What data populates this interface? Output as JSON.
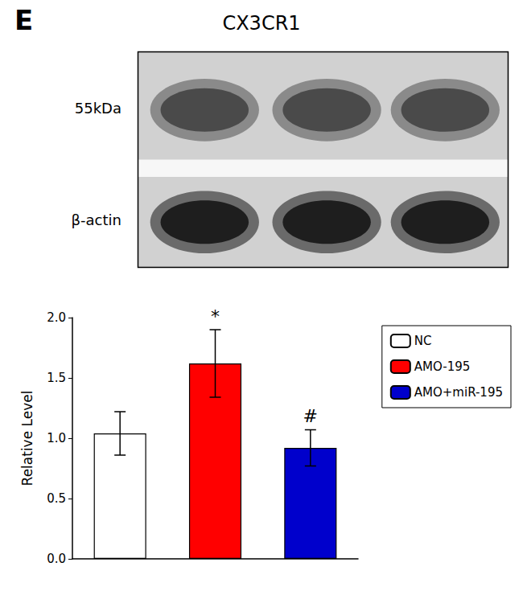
{
  "chart_data": {
    "type": "bar",
    "title": "CX3CR1",
    "categories": [
      "NC",
      "AMO-195",
      "AMO+miR-195"
    ],
    "values": [
      1.04,
      1.62,
      0.92
    ],
    "errors": [
      0.18,
      0.28,
      0.15
    ],
    "colors": [
      "#ffffff",
      "#ff0000",
      "#0000cc"
    ],
    "ylabel": "Relative Level",
    "ylim": [
      0.0,
      2.0
    ],
    "yticks": [
      {
        "value": 0,
        "label": "0.0"
      },
      0.5,
      {
        "value": 1,
        "label": "1.0"
      },
      1.5,
      {
        "value": 2,
        "label": "2.0"
      }
    ],
    "grid": false,
    "legend": "right",
    "tick_labels": "y",
    "annotations": [
      {
        "text": "E"
      },
      {
        "text": "55kDa"
      },
      {
        "text": "β-actin"
      },
      {
        "text": "*",
        "category": "AMO-195"
      },
      {
        "text": "#",
        "category": "AMO+miR-195"
      }
    ]
  }
}
